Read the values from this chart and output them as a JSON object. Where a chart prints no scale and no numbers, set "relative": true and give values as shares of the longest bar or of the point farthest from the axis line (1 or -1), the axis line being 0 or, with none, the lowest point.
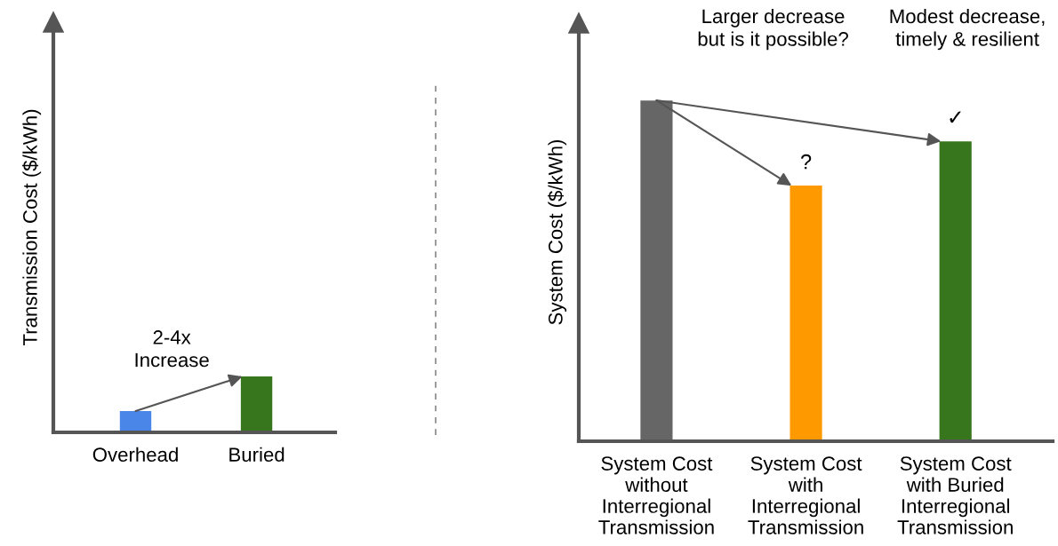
{
  "chart_data": [
    {
      "type": "bar",
      "relative": true,
      "ylabel": "Transmission Cost ($/kWh)",
      "categories": [
        "Overhead",
        "Buried"
      ],
      "values": [
        0.38,
        1
      ],
      "colors": [
        "#4a86e8",
        "#38761d"
      ],
      "annotations": [
        "2-4x\nIncrease"
      ]
    },
    {
      "type": "bar",
      "relative": true,
      "ylabel": "System Cost ($/kWh)",
      "categories": [
        "System Cost\nwithout\nInterregional\nTransmission",
        "System Cost\nwith\nInterregional\nTransmission",
        "System Cost\nwith Buried\nInterregional\nTransmission"
      ],
      "values": [
        1,
        0.75,
        0.88
      ],
      "colors": [
        "#666666",
        "#ff9900",
        "#38761d"
      ],
      "annotations": [
        "Larger decrease\nbut is it possible?",
        "Modest decrease,\ntimely & resilient",
        {
          "text": "?",
          "x": "System Cost\nwith\nInterregional\nTransmission",
          "y": 0.75
        },
        {
          "text": "✓",
          "x": "System Cost\nwith Buried\nInterregional\nTransmission",
          "y": 0.88
        }
      ]
    }
  ]
}
